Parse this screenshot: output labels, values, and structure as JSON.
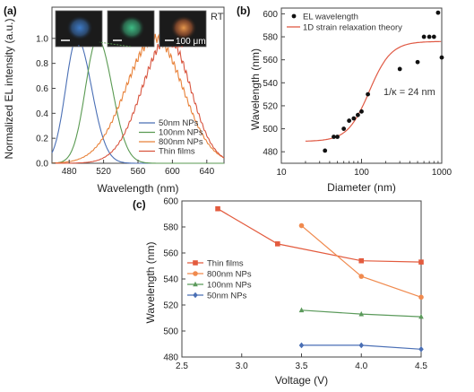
{
  "chart_data": [
    {
      "id": "a",
      "panel_label": "(a)",
      "type": "line",
      "xlabel": "Wavelength (nm)",
      "ylabel": "Normalized EL intensity (a.u.)",
      "xlim": [
        460,
        660
      ],
      "ylim": [
        0,
        1.25
      ],
      "xticks": [
        480,
        520,
        560,
        600,
        640
      ],
      "yticks": [
        0.0,
        0.2,
        0.4,
        0.6,
        0.8,
        1.0
      ],
      "annotation_rt": "RT",
      "scale_bar_label": "100 μm",
      "legend": "lower-right",
      "series": [
        {
          "name": "50nm NPs",
          "color": "#4a6fb5",
          "peak": 489,
          "sigma_left": 13,
          "sigma_right": 17
        },
        {
          "name": "100nm NPs",
          "color": "#5a9a52",
          "peak": 513,
          "sigma_left": 14,
          "sigma_right": 17
        },
        {
          "name": "800nm NPs",
          "color": "#e8823a",
          "peak": 580,
          "sigma_left": 34,
          "sigma_right": 32
        },
        {
          "name": "Thin films",
          "color": "#d8553f",
          "peak": 595,
          "sigma_left": 30,
          "sigma_right": 26
        }
      ],
      "insets": [
        {
          "glow": "#3f7fd0"
        },
        {
          "glow": "#3fc58a"
        },
        {
          "glow": "#e0703a"
        }
      ]
    },
    {
      "id": "b",
      "panel_label": "(b)",
      "type": "scatter",
      "xlabel": "Diameter (nm)",
      "ylabel": "Wavelength (nm)",
      "xscale": "log",
      "xlim": [
        10,
        1000
      ],
      "ylim": [
        470,
        605
      ],
      "xticks": [
        10,
        100,
        1000
      ],
      "xtick_labels": [
        "10",
        "100",
        "1000"
      ],
      "yticks": [
        480,
        500,
        520,
        540,
        560,
        580,
        600
      ],
      "legend": "top-left",
      "annotation": "1/κ = 24 nm",
      "series": [
        {
          "name": "EL wavelength",
          "color": "#111111",
          "x": [
            35,
            45,
            50,
            60,
            70,
            80,
            90,
            100,
            120,
            300,
            500,
            600,
            700,
            800,
            900,
            1000
          ],
          "y": [
            481,
            493,
            493,
            500,
            507,
            509,
            512,
            515,
            530,
            552,
            558,
            580,
            580,
            580,
            601,
            562
          ]
        },
        {
          "name": "1D strain relaxation theory",
          "color": "#e05a45",
          "curve": {
            "x0": 20,
            "y_min": 489,
            "y_max": 576,
            "k": 24
          }
        }
      ]
    },
    {
      "id": "c",
      "panel_label": "(c)",
      "type": "line",
      "xlabel": "Voltage (V)",
      "ylabel": "Wavelength (nm)",
      "xlim": [
        2.5,
        4.5
      ],
      "ylim": [
        480,
        600
      ],
      "xticks": [
        2.5,
        3.0,
        3.5,
        4.0,
        4.5
      ],
      "xtick_labels": [
        "2.5",
        "3.0",
        "3.5",
        "4.0",
        "4.5"
      ],
      "yticks": [
        480,
        500,
        520,
        540,
        560,
        580,
        600
      ],
      "legend": "center-left",
      "series": [
        {
          "name": "Thin films",
          "color": "#e35b3e",
          "marker": "square",
          "x": [
            2.8,
            3.3,
            4.0,
            4.5
          ],
          "y": [
            594,
            567,
            554,
            553
          ]
        },
        {
          "name": "800nm NPs",
          "color": "#f08a4e",
          "marker": "circle",
          "x": [
            3.5,
            4.0,
            4.5
          ],
          "y": [
            581,
            542,
            526
          ]
        },
        {
          "name": "100nm NPs",
          "color": "#5b9a5b",
          "marker": "triangle",
          "x": [
            3.5,
            4.0,
            4.5
          ],
          "y": [
            516,
            513,
            511
          ]
        },
        {
          "name": "50nm NPs",
          "color": "#4a6fb5",
          "marker": "diamond",
          "x": [
            3.5,
            4.0,
            4.5
          ],
          "y": [
            489,
            489,
            486
          ]
        }
      ]
    }
  ]
}
